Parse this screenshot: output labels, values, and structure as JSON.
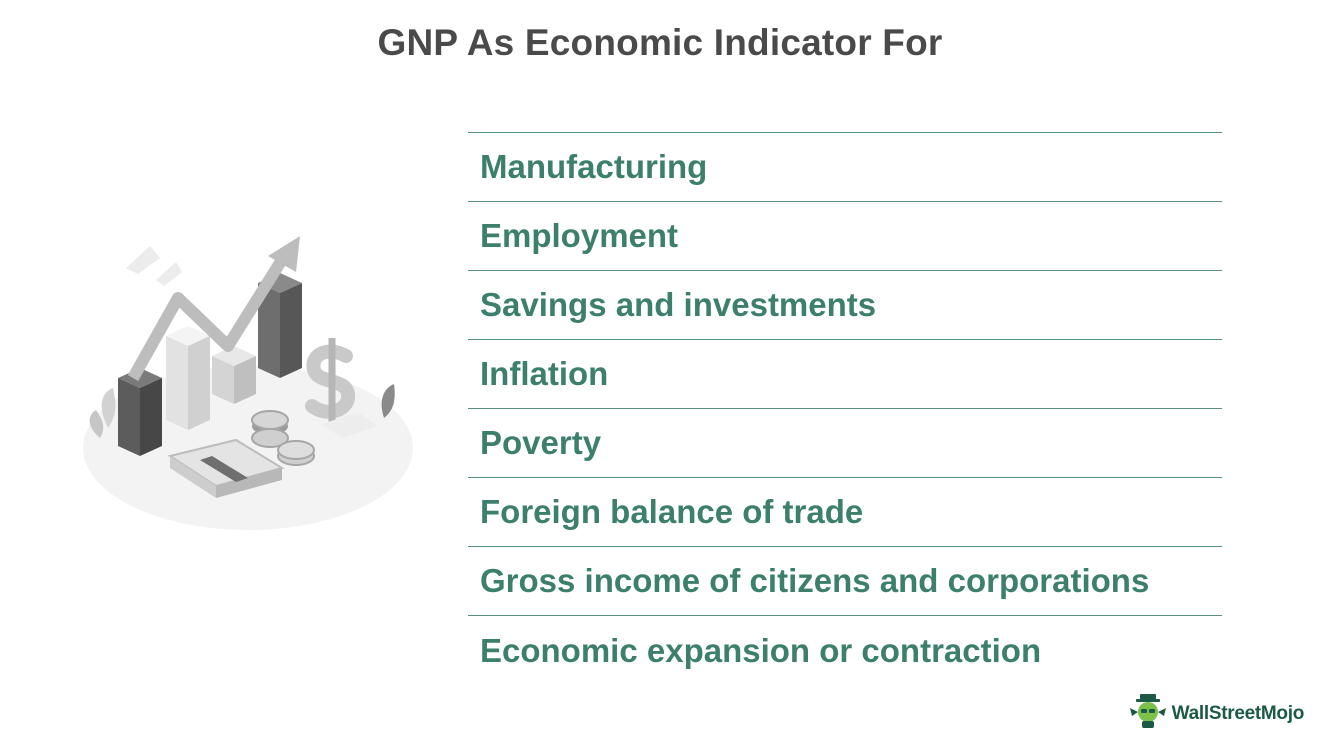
{
  "title": "GNP As Economic Indicator For",
  "indicators": [
    "Manufacturing",
    "Employment",
    "Savings and investments",
    "Inflation",
    "Poverty",
    "Foreign balance of trade",
    "Gross income of citizens and corporations",
    "Economic expansion or contraction"
  ],
  "illustration": {
    "icon": "growth-chart-money-icon"
  },
  "brand": {
    "name": "WallStreetMojo",
    "icon": "mojo-mascot-icon",
    "color": "#1c5a46"
  },
  "colors": {
    "title": "#4a4a4a",
    "list_text": "#3d7f6d",
    "divider": "#5a8f80"
  }
}
